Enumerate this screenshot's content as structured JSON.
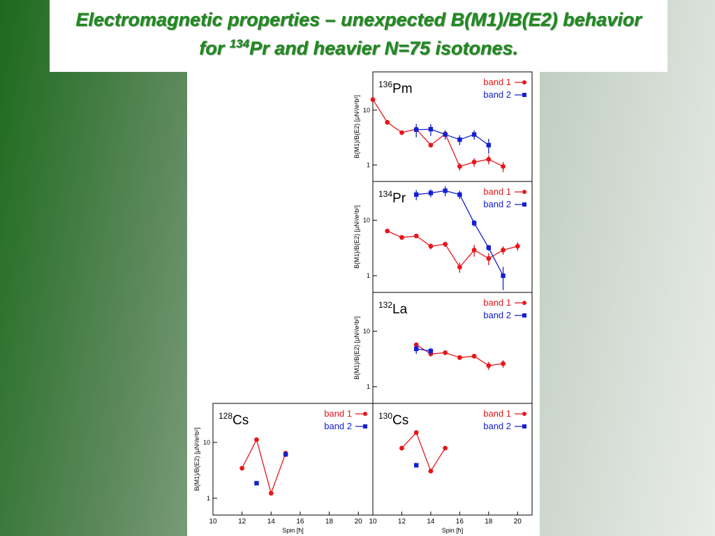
{
  "slide": {
    "title_line1": "Electromagnetic properties – unexpected B(M1)/B(E2) behavior",
    "title_pre": "for ",
    "title_sup": "134",
    "title_post": "Pr  and heavier  N=75 isotones."
  },
  "chart_data": [
    {
      "type": "line",
      "log_y": true,
      "mass": "136",
      "element": "Pm",
      "ylabel": "B(M1)/B(E2) [μN²/e²b²]",
      "legend": "upper right",
      "xlim": [
        10,
        21
      ],
      "ylim": [
        0.5,
        50
      ],
      "yticks": [
        1,
        10
      ],
      "x": [
        10,
        11,
        12,
        13,
        14,
        15,
        16,
        17,
        18,
        19
      ],
      "series": [
        {
          "name": "band 1",
          "color": "#e8161b",
          "marker": "circle",
          "values": [
            15.6,
            6.0,
            3.9,
            4.5,
            2.3,
            3.7,
            0.94,
            1.13,
            1.27,
            0.94
          ],
          "errors": [
            1.5,
            0.5,
            0.3,
            0.4,
            0.2,
            0.4,
            0.15,
            0.2,
            0.25,
            0.2
          ]
        },
        {
          "name": "band 2",
          "color": "#1520d0",
          "marker": "square",
          "values": [
            null,
            null,
            null,
            4.4,
            4.5,
            3.6,
            2.9,
            3.6,
            2.3,
            null
          ],
          "errors": [
            null,
            null,
            null,
            1.2,
            1.1,
            0.7,
            0.6,
            0.7,
            0.7,
            null
          ]
        }
      ]
    },
    {
      "type": "line",
      "log_y": true,
      "mass": "134",
      "element": "Pr",
      "ylabel": "B(M1)/B(E2) [μN²/e²b²]",
      "legend": "upper right",
      "xlim": [
        10,
        21
      ],
      "ylim": [
        0.5,
        50
      ],
      "yticks": [
        1,
        10
      ],
      "x": [
        11,
        12,
        13,
        14,
        15,
        16,
        17,
        18,
        19,
        20
      ],
      "series": [
        {
          "name": "band 1",
          "color": "#e8161b",
          "marker": "circle",
          "values": [
            6.4,
            4.9,
            5.2,
            3.4,
            3.7,
            1.43,
            2.9,
            2.05,
            2.9,
            3.4
          ],
          "errors": [
            0.4,
            0.3,
            0.4,
            0.4,
            0.4,
            0.3,
            0.7,
            0.5,
            0.5,
            0.6
          ]
        },
        {
          "name": "band 2",
          "color": "#1520d0",
          "marker": "square",
          "values": [
            null,
            null,
            29,
            31,
            34,
            29,
            8.9,
            3.2,
            1.0,
            null
          ],
          "errors": [
            null,
            null,
            6,
            5,
            7,
            5,
            1.2,
            0.4,
            0.45,
            null
          ]
        }
      ]
    },
    {
      "type": "line",
      "log_y": true,
      "mass": "132",
      "element": "La",
      "ylabel": "B(M1)/B(E2) [μN²/e²b²]",
      "legend": "upper right",
      "xlim": [
        10,
        21
      ],
      "ylim": [
        0.5,
        50
      ],
      "yticks": [
        1,
        10
      ],
      "x": [
        13,
        14,
        15,
        16,
        17,
        18,
        19
      ],
      "series": [
        {
          "name": "band 1",
          "color": "#e8161b",
          "marker": "circle",
          "values": [
            5.7,
            3.9,
            4.1,
            3.35,
            3.55,
            2.4,
            2.6
          ],
          "errors": [
            0.4,
            0.4,
            0.3,
            0.3,
            0.3,
            0.4,
            0.4
          ]
        },
        {
          "name": "band 2",
          "color": "#1520d0",
          "marker": "square",
          "values": [
            4.8,
            4.4,
            null,
            null,
            null,
            null,
            null
          ],
          "errors": [
            0.9,
            0.6,
            null,
            null,
            null,
            null,
            null
          ]
        }
      ]
    },
    {
      "type": "line",
      "log_y": true,
      "mass": "128",
      "element": "Cs",
      "ylabel": "B(M1)/B(E2) [μN²/e²b²]",
      "xlabel": "Spin [ħ]",
      "legend": "upper right",
      "xlim": [
        10,
        21
      ],
      "ylim": [
        0.5,
        50
      ],
      "yticks": [
        1,
        10
      ],
      "xticks": [
        10,
        12,
        14,
        16,
        18,
        20
      ],
      "x": [
        12,
        13,
        14,
        15
      ],
      "series": [
        {
          "name": "band 1",
          "color": "#e8161b",
          "marker": "circle",
          "values": [
            3.45,
            11.2,
            1.23,
            6.4
          ],
          "errors": [
            0.1,
            0.5,
            0.05,
            0.3
          ]
        },
        {
          "name": "band 2",
          "color": "#1520d0",
          "marker": "square",
          "values": [
            null,
            1.86,
            null,
            6.1
          ],
          "errors": [
            null,
            0.15,
            null,
            0.6
          ]
        }
      ]
    },
    {
      "type": "line",
      "log_y": true,
      "mass": "130",
      "element": "Cs",
      "xlabel": "Spin [ħ]",
      "legend": "upper right",
      "xlim": [
        10,
        21
      ],
      "ylim": [
        0.5,
        50
      ],
      "xticks": [
        10,
        12,
        14,
        16,
        18,
        20
      ],
      "x": [
        12,
        13,
        14,
        15
      ],
      "series": [
        {
          "name": "band 1",
          "color": "#e8161b",
          "marker": "circle",
          "values": [
            7.9,
            15,
            3.07,
            7.9
          ],
          "errors": [
            0.3,
            0.5,
            0.2,
            0.4
          ]
        },
        {
          "name": "band 2",
          "color": "#1520d0",
          "marker": "square",
          "values": [
            null,
            3.9,
            null,
            null
          ],
          "errors": [
            null,
            0.2,
            null,
            null
          ]
        }
      ]
    }
  ]
}
